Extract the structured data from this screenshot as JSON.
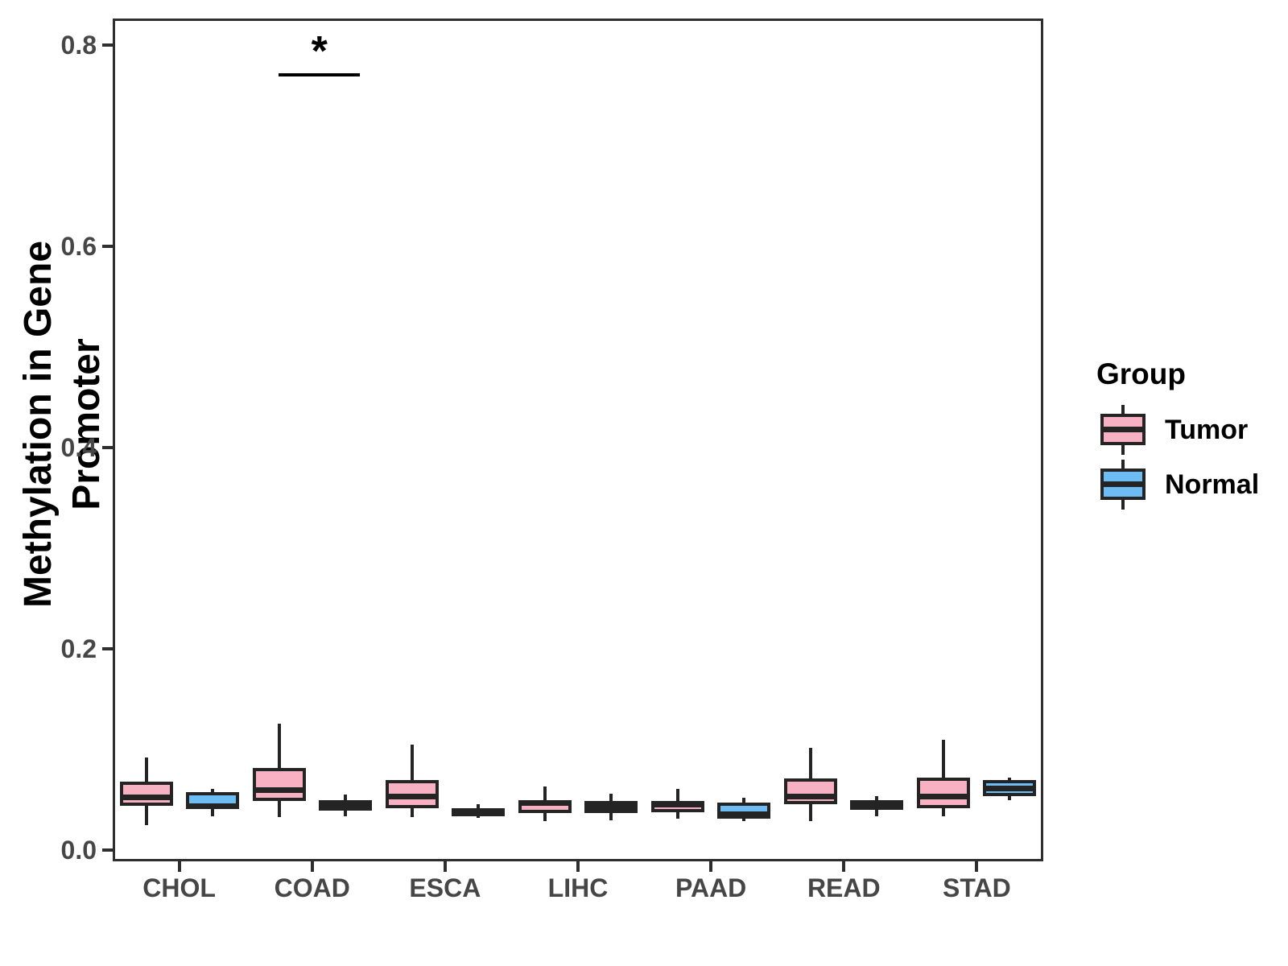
{
  "chart_data": {
    "type": "boxplot",
    "title": "",
    "xlabel": "",
    "ylabel": "Methylation in Gene Promoter",
    "ylim": [
      0,
      0.83
    ],
    "yticks": [
      0.0,
      0.2,
      0.4,
      0.6,
      0.8
    ],
    "ytick_labels": [
      "0.0",
      "0.2",
      "0.4",
      "0.6",
      "0.8"
    ],
    "categories": [
      "CHOL",
      "COAD",
      "ESCA",
      "LIHC",
      "PAAD",
      "READ",
      "STAD"
    ],
    "grid": "off",
    "legend": {
      "title": "Group",
      "position": "right",
      "entries": [
        "Tumor",
        "Normal"
      ]
    },
    "colors": {
      "tumor_fill": "#F8B1C2",
      "normal_fill": "#6EBCF4",
      "box_border": "#242424",
      "axis_border": "#2e2e2e",
      "tick_text": "#464646",
      "annotation": "#000000"
    },
    "series": [
      {
        "name": "Tumor",
        "color": "#F8B1C2",
        "data": [
          {
            "category": "CHOL",
            "min": 0.025,
            "q1": 0.044,
            "median": 0.053,
            "q3": 0.068,
            "max": 0.092
          },
          {
            "category": "COAD",
            "min": 0.033,
            "q1": 0.049,
            "median": 0.06,
            "q3": 0.082,
            "max": 0.126
          },
          {
            "category": "ESCA",
            "min": 0.033,
            "q1": 0.042,
            "median": 0.054,
            "q3": 0.07,
            "max": 0.105
          },
          {
            "category": "LIHC",
            "min": 0.029,
            "q1": 0.037,
            "median": 0.047,
            "q3": 0.05,
            "max": 0.063
          },
          {
            "category": "PAAD",
            "min": 0.031,
            "q1": 0.038,
            "median": 0.046,
            "q3": 0.049,
            "max": 0.061
          },
          {
            "category": "READ",
            "min": 0.029,
            "q1": 0.046,
            "median": 0.054,
            "q3": 0.071,
            "max": 0.102
          },
          {
            "category": "STAD",
            "min": 0.034,
            "q1": 0.042,
            "median": 0.054,
            "q3": 0.072,
            "max": 0.11
          }
        ]
      },
      {
        "name": "Normal",
        "color": "#6EBCF4",
        "data": [
          {
            "category": "CHOL",
            "min": 0.034,
            "q1": 0.041,
            "median": 0.044,
            "q3": 0.058,
            "max": 0.061
          },
          {
            "category": "COAD",
            "min": 0.034,
            "q1": 0.039,
            "median": 0.044,
            "q3": 0.05,
            "max": 0.055
          },
          {
            "category": "ESCA",
            "min": 0.032,
            "q1": 0.034,
            "median": 0.038,
            "q3": 0.042,
            "max": 0.046
          },
          {
            "category": "LIHC",
            "min": 0.03,
            "q1": 0.037,
            "median": 0.043,
            "q3": 0.049,
            "max": 0.056
          },
          {
            "category": "PAAD",
            "min": 0.029,
            "q1": 0.031,
            "median": 0.036,
            "q3": 0.047,
            "max": 0.052
          },
          {
            "category": "READ",
            "min": 0.034,
            "q1": 0.04,
            "median": 0.044,
            "q3": 0.05,
            "max": 0.054
          },
          {
            "category": "STAD",
            "min": 0.05,
            "q1": 0.054,
            "median": 0.062,
            "q3": 0.07,
            "max": 0.072
          }
        ]
      }
    ],
    "annotations": [
      {
        "type": "significance",
        "label": "*",
        "category": "COAD",
        "between": [
          "Tumor",
          "Normal"
        ],
        "bar_y": 0.772
      }
    ]
  }
}
